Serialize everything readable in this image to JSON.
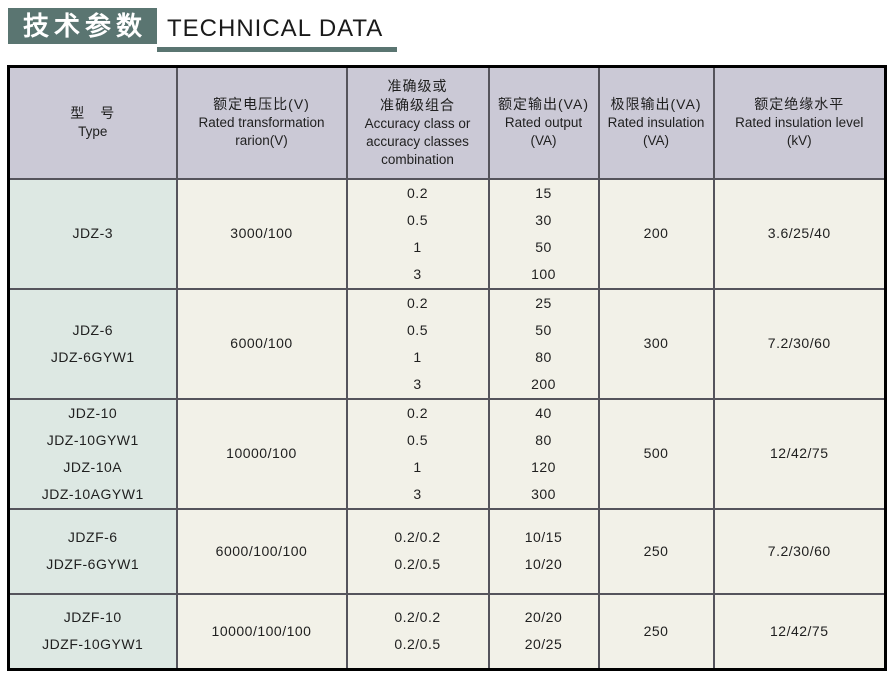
{
  "page": {
    "title_zh": "技术参数",
    "title_en": "TECHNICAL DATA"
  },
  "colors": {
    "accent_teal": "#5a7571",
    "header_bg": "#cbc9d6",
    "type_col_bg": "#dde8e3",
    "cell_bg": "#f2f1e8",
    "grid_line": "#55545c",
    "outer_border": "#000000"
  },
  "table": {
    "columns": [
      {
        "id": "type",
        "lines": [
          "型　号",
          "Type"
        ]
      },
      {
        "id": "ratio",
        "lines": [
          "额定电压比(V)",
          "Rated transformation",
          "rarion(V)"
        ]
      },
      {
        "id": "accuracy",
        "lines": [
          "准确级或",
          "准确级组合",
          "Accuracy class or",
          "accuracy classes",
          "combination"
        ]
      },
      {
        "id": "rated_output",
        "lines": [
          "额定输出(VA)",
          "Rated output",
          "(VA)"
        ]
      },
      {
        "id": "limit_output",
        "lines": [
          "极限输出(VA)",
          "Rated insulation",
          "(VA)"
        ]
      },
      {
        "id": "insulation_level",
        "lines": [
          "额定绝缘水平",
          "Rated insulation level",
          "(kV)"
        ]
      }
    ],
    "rows": [
      {
        "type": [
          "JDZ-3"
        ],
        "ratio": [
          "3000/100"
        ],
        "accuracy": [
          "0.2",
          "0.5",
          "1",
          "3"
        ],
        "rated_output": [
          "15",
          "30",
          "50",
          "100"
        ],
        "limit_output": [
          "200"
        ],
        "insulation_level": [
          "3.6/25/40"
        ]
      },
      {
        "type": [
          "JDZ-6",
          "JDZ-6GYW1"
        ],
        "ratio": [
          "6000/100"
        ],
        "accuracy": [
          "0.2",
          "0.5",
          "1",
          "3"
        ],
        "rated_output": [
          "25",
          "50",
          "80",
          "200"
        ],
        "limit_output": [
          "300"
        ],
        "insulation_level": [
          "7.2/30/60"
        ]
      },
      {
        "type": [
          "JDZ-10",
          "JDZ-10GYW1",
          "JDZ-10A",
          "JDZ-10AGYW1"
        ],
        "ratio": [
          "10000/100"
        ],
        "accuracy": [
          "0.2",
          "0.5",
          "1",
          "3"
        ],
        "rated_output": [
          "40",
          "80",
          "120",
          "300"
        ],
        "limit_output": [
          "500"
        ],
        "insulation_level": [
          "12/42/75"
        ]
      },
      {
        "type": [
          "JDZF-6",
          "JDZF-6GYW1"
        ],
        "ratio": [
          "6000/100/100"
        ],
        "accuracy": [
          "0.2/0.2",
          "0.2/0.5"
        ],
        "rated_output": [
          "10/15",
          "10/20"
        ],
        "limit_output": [
          "250"
        ],
        "insulation_level": [
          "7.2/30/60"
        ]
      },
      {
        "type": [
          "JDZF-10",
          "JDZF-10GYW1"
        ],
        "ratio": [
          "10000/100/100"
        ],
        "accuracy": [
          "0.2/0.2",
          "0.2/0.5"
        ],
        "rated_output": [
          "20/20",
          "20/25"
        ],
        "limit_output": [
          "250"
        ],
        "insulation_level": [
          "12/42/75"
        ]
      }
    ]
  }
}
